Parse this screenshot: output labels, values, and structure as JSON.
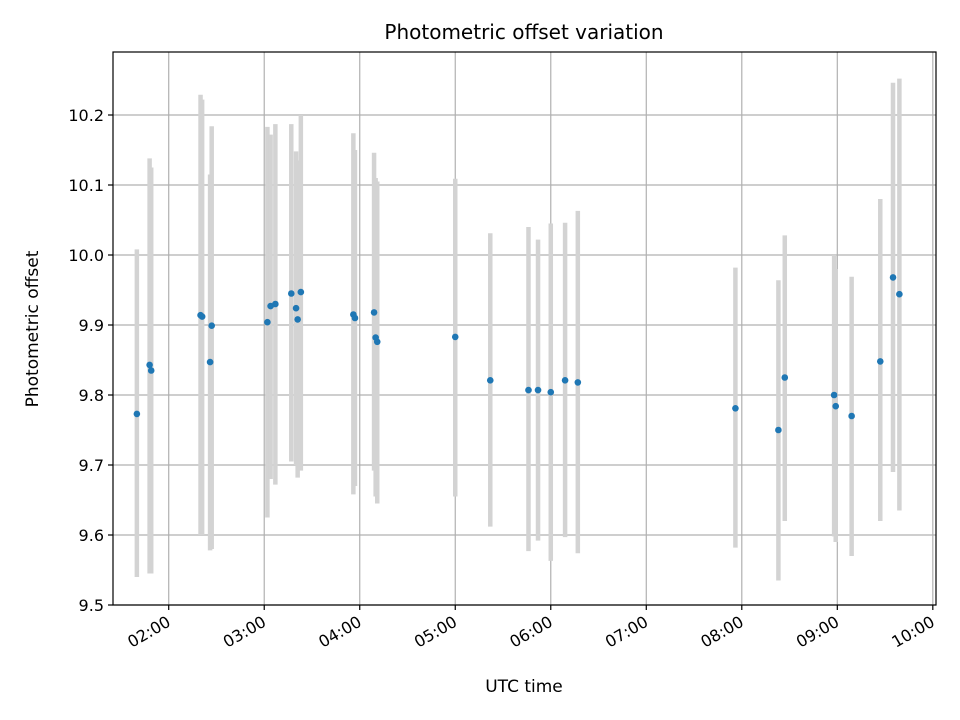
{
  "chart_data": {
    "type": "scatter",
    "title": "Photometric offset variation",
    "xlabel": "UTC time",
    "ylabel": "Photometric offset",
    "xlim": [
      "01:25",
      "10:02"
    ],
    "ylim": [
      9.5,
      10.29
    ],
    "x_ticks": [
      "02:00",
      "03:00",
      "04:00",
      "05:00",
      "06:00",
      "07:00",
      "08:00",
      "09:00",
      "10:00"
    ],
    "y_ticks": [
      "9.5",
      "9.6",
      "9.7",
      "9.8",
      "9.9",
      "10.0",
      "10.1",
      "10.2"
    ],
    "grid": true,
    "point_color": "#1f77b4",
    "errorbar_color": "#d3d3d3",
    "points": [
      {
        "x": "01:40",
        "y": 9.773,
        "low": 9.54,
        "high": 10.008
      },
      {
        "x": "01:48",
        "y": 9.843,
        "low": 9.545,
        "high": 10.138
      },
      {
        "x": "01:49",
        "y": 9.835,
        "low": 9.545,
        "high": 10.125
      },
      {
        "x": "02:20",
        "y": 9.914,
        "low": 9.6,
        "high": 10.229
      },
      {
        "x": "02:21",
        "y": 9.912,
        "low": 9.6,
        "high": 10.222
      },
      {
        "x": "02:26",
        "y": 9.847,
        "low": 9.578,
        "high": 10.115
      },
      {
        "x": "02:27",
        "y": 9.899,
        "low": 9.58,
        "high": 10.184
      },
      {
        "x": "03:02",
        "y": 9.904,
        "low": 9.625,
        "high": 10.183
      },
      {
        "x": "03:04",
        "y": 9.927,
        "low": 9.68,
        "high": 10.172
      },
      {
        "x": "03:07",
        "y": 9.93,
        "low": 9.672,
        "high": 10.187
      },
      {
        "x": "03:17",
        "y": 9.945,
        "low": 9.705,
        "high": 10.187
      },
      {
        "x": "03:20",
        "y": 9.924,
        "low": 9.7,
        "high": 10.148
      },
      {
        "x": "03:21",
        "y": 9.908,
        "low": 9.682,
        "high": 10.135
      },
      {
        "x": "03:23",
        "y": 9.947,
        "low": 9.692,
        "high": 10.2
      },
      {
        "x": "03:56",
        "y": 9.915,
        "low": 9.658,
        "high": 10.174
      },
      {
        "x": "03:57",
        "y": 9.91,
        "low": 9.67,
        "high": 10.15
      },
      {
        "x": "04:09",
        "y": 9.918,
        "low": 9.692,
        "high": 10.146
      },
      {
        "x": "04:10",
        "y": 9.882,
        "low": 9.655,
        "high": 10.11
      },
      {
        "x": "04:11",
        "y": 9.876,
        "low": 9.645,
        "high": 10.105
      },
      {
        "x": "05:00",
        "y": 9.883,
        "low": 9.655,
        "high": 10.109
      },
      {
        "x": "05:22",
        "y": 9.821,
        "low": 9.612,
        "high": 10.031
      },
      {
        "x": "05:46",
        "y": 9.807,
        "low": 9.577,
        "high": 10.04
      },
      {
        "x": "05:52",
        "y": 9.807,
        "low": 9.592,
        "high": 10.022
      },
      {
        "x": "06:00",
        "y": 9.804,
        "low": 9.563,
        "high": 10.045
      },
      {
        "x": "06:09",
        "y": 9.821,
        "low": 9.597,
        "high": 10.046
      },
      {
        "x": "06:17",
        "y": 9.818,
        "low": 9.574,
        "high": 10.063
      },
      {
        "x": "07:56",
        "y": 9.781,
        "low": 9.582,
        "high": 9.982
      },
      {
        "x": "08:23",
        "y": 9.75,
        "low": 9.535,
        "high": 9.964
      },
      {
        "x": "08:27",
        "y": 9.825,
        "low": 9.62,
        "high": 10.028
      },
      {
        "x": "08:58",
        "y": 9.8,
        "low": 9.598,
        "high": 10.0
      },
      {
        "x": "08:59",
        "y": 9.784,
        "low": 9.59,
        "high": 9.98
      },
      {
        "x": "09:09",
        "y": 9.77,
        "low": 9.57,
        "high": 9.969
      },
      {
        "x": "09:27",
        "y": 9.848,
        "low": 9.62,
        "high": 10.08
      },
      {
        "x": "09:35",
        "y": 9.968,
        "low": 9.69,
        "high": 10.246
      },
      {
        "x": "09:39",
        "y": 9.944,
        "low": 9.635,
        "high": 10.252
      }
    ]
  }
}
